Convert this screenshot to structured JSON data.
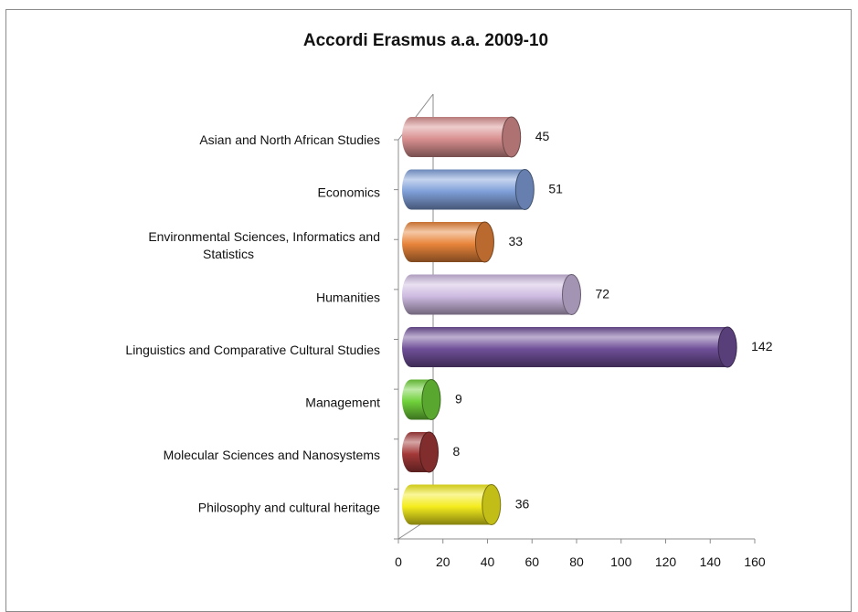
{
  "chart_data": {
    "type": "bar",
    "orientation": "horizontal",
    "title": "Accordi Erasmus a.a. 2009-10",
    "xlabel": "",
    "ylabel": "",
    "categories": [
      "Asian and North African Studies",
      "Economics",
      "Environmental Sciences, Informatics and Statistics",
      "Humanities",
      "Linguistics and Comparative Cultural Studies",
      "Management",
      "Molecular Sciences and Nanosystems",
      "Philosophy and cultural heritage"
    ],
    "category_label_lines": [
      [
        "Asian and North African Studies"
      ],
      [
        "Economics"
      ],
      [
        "Environmental Sciences, Informatics and",
        "Statistics"
      ],
      [
        "Humanities"
      ],
      [
        "Linguistics and Comparative Cultural Studies"
      ],
      [
        "Management"
      ],
      [
        "Molecular Sciences and Nanosystems"
      ],
      [
        "Philosophy and cultural heritage"
      ]
    ],
    "values": [
      45,
      51,
      33,
      72,
      142,
      9,
      8,
      36
    ],
    "colors": [
      "#d98f8f",
      "#7f9fd9",
      "#e8843a",
      "#cdb9e0",
      "#6f4f98",
      "#6fd13a",
      "#a33838",
      "#f4ec1d"
    ],
    "xlim": [
      0,
      160
    ],
    "xticks": [
      0,
      20,
      40,
      60,
      80,
      100,
      120,
      140,
      160
    ],
    "style": "3d-cylinder",
    "grid": false,
    "legend": "none"
  }
}
